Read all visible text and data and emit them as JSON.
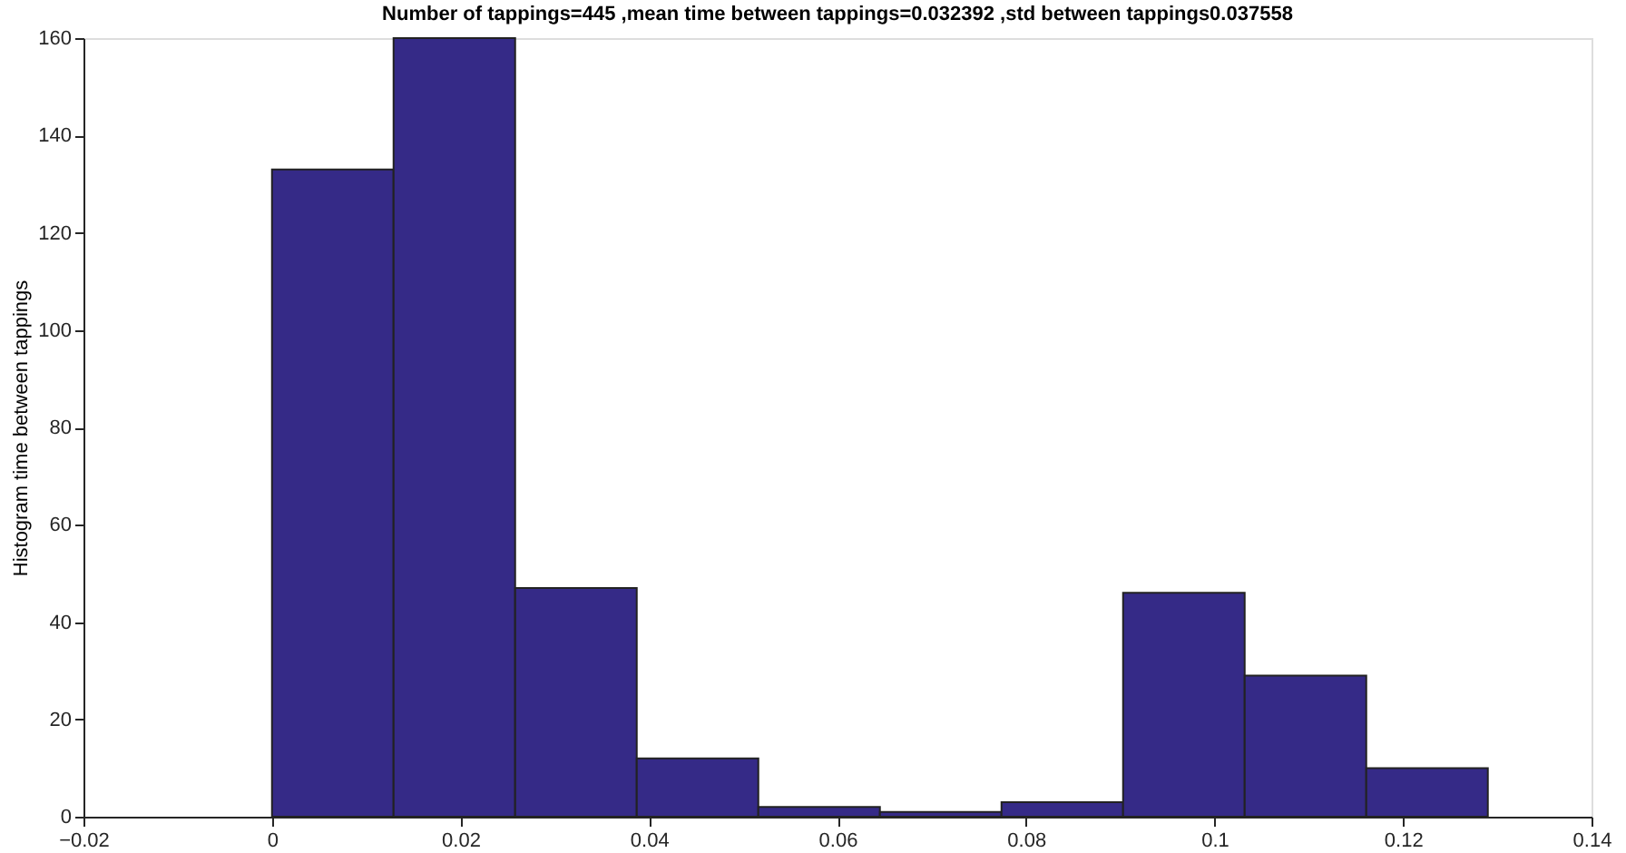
{
  "chart_data": {
    "type": "histogram",
    "title": "Number of tappings=445   ,mean time between tappings=0.032392   ,std between tappings0.037558",
    "ylabel": "Histogram time between tappings",
    "bins": [
      0,
      0.0129,
      0.0258,
      0.0387,
      0.0516,
      0.0645,
      0.0774,
      0.0903,
      0.1032,
      0.1161,
      0.129
    ],
    "values": [
      133,
      160,
      47,
      12,
      2,
      1,
      3,
      46,
      29,
      10
    ],
    "color": "#352a87",
    "xlim": [
      -0.02,
      0.14
    ],
    "xticks": [
      -0.02,
      0,
      0.02,
      0.04,
      0.06,
      0.08,
      0.1,
      0.12,
      0.14
    ],
    "ylim": [
      0,
      160
    ],
    "yticks": [
      0,
      20,
      40,
      60,
      80,
      100,
      120,
      140,
      160
    ],
    "grid": false
  }
}
